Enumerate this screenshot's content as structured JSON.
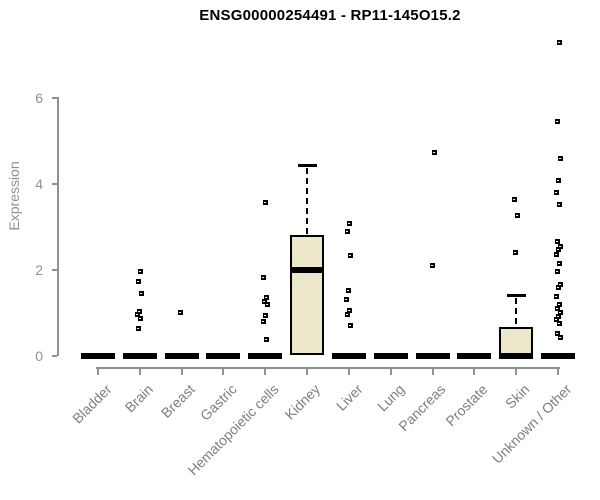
{
  "chart_data": {
    "type": "boxplot",
    "title": "ENSG00000254491 - RP11-145O15.2",
    "ylabel": "Expression",
    "xlabel": "",
    "yticks": [
      0,
      2,
      4,
      6
    ],
    "ylim": [
      0,
      7.4
    ],
    "grid": false,
    "legend": null,
    "categories": [
      "Bladder",
      "Brain",
      "Breast",
      "Gastric",
      "Hematopoietic cells",
      "Kidney",
      "Liver",
      "Lung",
      "Pancreas",
      "Prostate",
      "Skin",
      "Unknown / Other"
    ],
    "boxes": [
      {
        "category": "Bladder",
        "q1": 0,
        "median": 0,
        "q3": 0,
        "whisker_low": 0,
        "whisker_high": 0,
        "outliers": []
      },
      {
        "category": "Brain",
        "q1": 0,
        "median": 0,
        "q3": 0,
        "whisker_low": 0,
        "whisker_high": 0,
        "outliers": [
          1.95,
          1.73,
          1.45,
          1.03,
          0.95,
          0.86,
          0.64
        ]
      },
      {
        "category": "Breast",
        "q1": 0,
        "median": 0,
        "q3": 0,
        "whisker_low": 0,
        "whisker_high": 0,
        "outliers": [
          1.0
        ]
      },
      {
        "category": "Gastric",
        "q1": 0,
        "median": 0,
        "q3": 0,
        "whisker_low": 0,
        "whisker_high": 0,
        "outliers": []
      },
      {
        "category": "Hematopoietic cells",
        "q1": 0,
        "median": 0,
        "q3": 0,
        "whisker_low": 0,
        "whisker_high": 0,
        "outliers": [
          3.56,
          1.81,
          1.36,
          1.27,
          1.18,
          0.94,
          0.79,
          0.37
        ]
      },
      {
        "category": "Kidney",
        "q1": 0,
        "median": 2.0,
        "q3": 2.8,
        "whisker_low": 0,
        "whisker_high": 4.45,
        "outliers": []
      },
      {
        "category": "Liver",
        "q1": 0,
        "median": 0,
        "q3": 0,
        "whisker_low": 0,
        "whisker_high": 0,
        "outliers": [
          3.08,
          2.88,
          2.32,
          1.52,
          1.31,
          1.06,
          0.96,
          0.71
        ]
      },
      {
        "category": "Lung",
        "q1": 0,
        "median": 0,
        "q3": 0,
        "whisker_low": 0,
        "whisker_high": 0,
        "outliers": []
      },
      {
        "category": "Pancreas",
        "q1": 0,
        "median": 0,
        "q3": 0,
        "whisker_low": 0,
        "whisker_high": 0,
        "outliers": [
          4.73,
          2.09
        ]
      },
      {
        "category": "Prostate",
        "q1": 0,
        "median": 0,
        "q3": 0,
        "whisker_low": 0,
        "whisker_high": 0,
        "outliers": []
      },
      {
        "category": "Skin",
        "q1": 0,
        "median": 0,
        "q3": 0.66,
        "whisker_low": 0,
        "whisker_high": 1.42,
        "outliers": [
          3.64,
          3.27,
          2.41
        ]
      },
      {
        "category": "Unknown / Other",
        "q1": 0,
        "median": 0,
        "q3": 0,
        "whisker_low": 0,
        "whisker_high": 0,
        "outliers": [
          7.3,
          5.45,
          4.6,
          4.08,
          3.8,
          3.52,
          2.66,
          2.54,
          2.46,
          2.35,
          2.15,
          1.96,
          1.65,
          1.58,
          1.37,
          1.18,
          1.09,
          1.0,
          0.92,
          0.83,
          0.75,
          0.52,
          0.42
        ]
      }
    ],
    "colors": {
      "box_fill": "#ece7ca",
      "box_border": "#000000",
      "median": "#000000",
      "whisker": "#000000",
      "outlier": "#000000",
      "axis": "#919191",
      "tick_label": "#919191",
      "title": "#000000",
      "background": "#ffffff"
    }
  }
}
